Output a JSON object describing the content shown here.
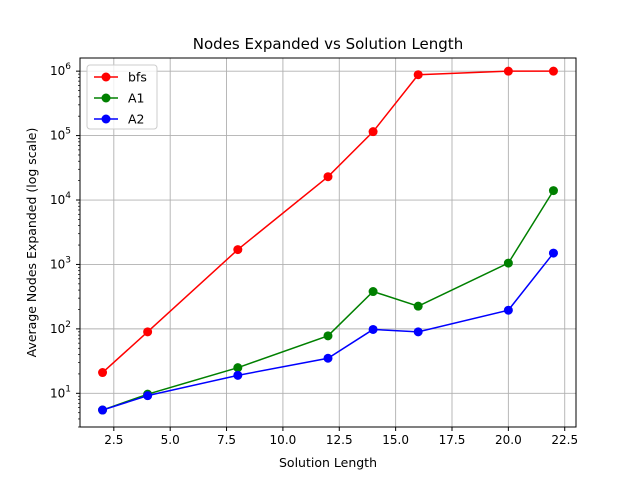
{
  "chart_data": {
    "type": "line",
    "title": "Nodes Expanded vs Solution Length",
    "xlabel": "Solution Length",
    "ylabel": "Average Nodes Expanded (log scale)",
    "yscale": "log",
    "xlim": [
      1.0,
      23.0
    ],
    "ylim": [
      3,
      1600000
    ],
    "grid": true,
    "legend": "top-left",
    "xticks": [
      2.5,
      5.0,
      7.5,
      10.0,
      12.5,
      15.0,
      17.5,
      20.0,
      22.5
    ],
    "xtick_labels": [
      "2.5",
      "5.0",
      "7.5",
      "10.0",
      "12.5",
      "15.0",
      "17.5",
      "20.0",
      "22.5"
    ],
    "yticks": [
      {
        "value": 10,
        "base": "10",
        "exp": "1"
      },
      {
        "value": 100,
        "base": "10",
        "exp": "2"
      },
      {
        "value": 1000,
        "base": "10",
        "exp": "3"
      },
      {
        "value": 10000,
        "base": "10",
        "exp": "4"
      },
      {
        "value": 100000,
        "base": "10",
        "exp": "5"
      },
      {
        "value": 1000000,
        "base": "10",
        "exp": "6"
      }
    ],
    "series": [
      {
        "name": "bfs",
        "color": "#ff0000",
        "x": [
          2,
          4,
          8,
          12,
          14,
          16,
          20,
          22
        ],
        "y": [
          21,
          90,
          1700,
          23000,
          115000,
          880000,
          1000000,
          1000000
        ]
      },
      {
        "name": "A1",
        "color": "#008000",
        "x": [
          2,
          4,
          8,
          12,
          14,
          16,
          20,
          22
        ],
        "y": [
          5.5,
          9.7,
          25,
          78,
          380,
          225,
          1050,
          14000
        ]
      },
      {
        "name": "A2",
        "color": "#0000ff",
        "x": [
          2,
          4,
          8,
          12,
          14,
          16,
          20,
          22
        ],
        "y": [
          5.5,
          9.2,
          19,
          35,
          98,
          90,
          195,
          1500
        ]
      }
    ]
  }
}
